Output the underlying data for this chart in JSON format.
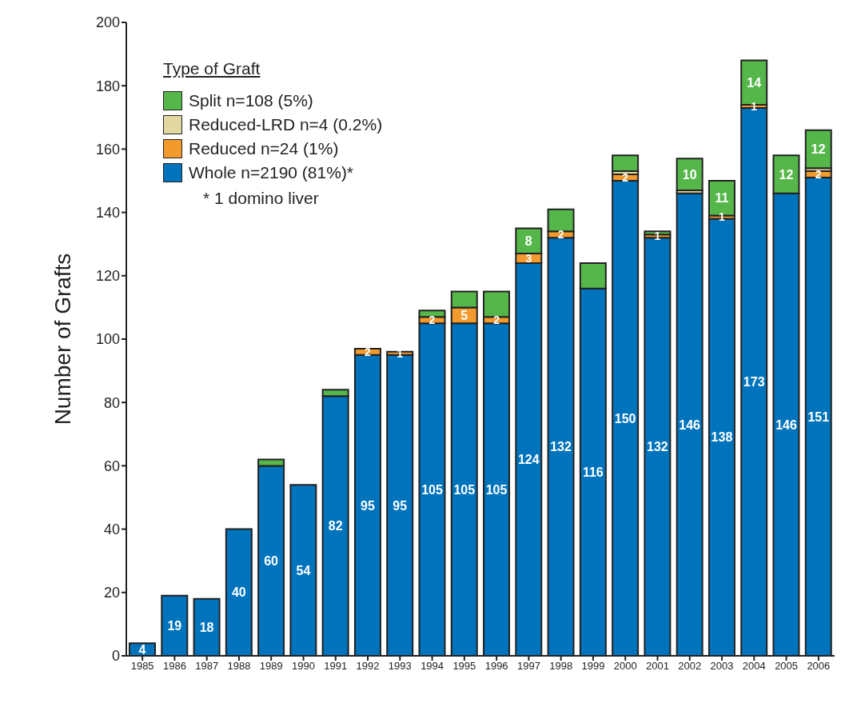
{
  "chart_data": {
    "type": "bar",
    "stacked": true,
    "ylabel": "Number of Grafts",
    "legend_title": "Type of Graft",
    "legend": "top left",
    "grid": false,
    "data_labels": false,
    "annotations": [
      "* 1 domino liver"
    ],
    "categories": [
      "1985",
      "1986",
      "1987",
      "1988",
      "1989",
      "1990",
      "1991",
      "1992",
      "1993",
      "1994",
      "1995",
      "1996",
      "1997",
      "1998",
      "1999",
      "2000",
      "2001",
      "2002",
      "2003",
      "2004",
      "2005",
      "2006"
    ],
    "ylim": [
      0,
      200
    ],
    "yticks": [
      0,
      20,
      40,
      60,
      80,
      100,
      120,
      140,
      160,
      180,
      200
    ],
    "series": [
      {
        "name": "Whole n=2190 (81%)*",
        "color": "#0073bd",
        "values": [
          4,
          19,
          18,
          40,
          60,
          54,
          82,
          95,
          95,
          105,
          105,
          105,
          124,
          132,
          116,
          150,
          132,
          146,
          138,
          173,
          146,
          151
        ],
        "value_labels": [
          "4",
          "19",
          "18",
          "40",
          "60",
          "54",
          "82",
          "95",
          "95",
          "105",
          "105",
          "105",
          "124",
          "132",
          "116",
          "150",
          "132",
          "146",
          "138",
          "173",
          "146",
          "151"
        ]
      },
      {
        "name": "Reduced n=24 (1%)",
        "color": "#f39a2e",
        "values": [
          0,
          0,
          0,
          0,
          0,
          0,
          0,
          2,
          1,
          2,
          5,
          2,
          3,
          2,
          0,
          2,
          1,
          0,
          1,
          1,
          0,
          2
        ],
        "value_labels": [
          null,
          null,
          null,
          null,
          null,
          null,
          null,
          "2",
          "1",
          "2",
          "5",
          "2",
          "3",
          "2",
          null,
          "2",
          "1",
          null,
          "1",
          "1",
          null,
          "2"
        ]
      },
      {
        "name": "Reduced-LRD n=4 (0.2%)",
        "color": "#e3d9a0",
        "values": [
          0,
          0,
          0,
          0,
          0,
          0,
          0,
          0,
          0,
          0,
          0,
          0,
          0,
          0,
          0,
          1,
          0,
          1,
          0,
          0,
          0,
          1
        ]
      },
      {
        "name": "Split n=108 (5%)",
        "color": "#55b64a",
        "values": [
          0,
          0,
          0,
          0,
          2,
          0,
          2,
          0,
          0,
          2,
          5,
          8,
          8,
          7,
          8,
          5,
          1,
          10,
          11,
          14,
          12,
          12
        ],
        "value_labels": [
          null,
          null,
          null,
          null,
          null,
          null,
          null,
          null,
          null,
          null,
          null,
          null,
          "8",
          null,
          null,
          null,
          null,
          "10",
          "11",
          "14",
          "12",
          "12"
        ]
      }
    ]
  }
}
